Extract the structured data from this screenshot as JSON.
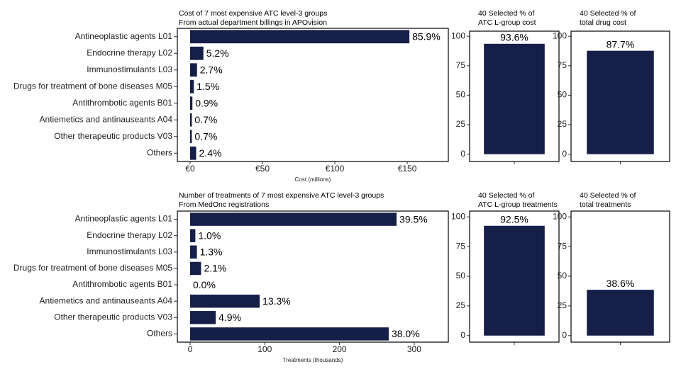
{
  "chart_data": [
    {
      "type": "hbar",
      "title": "Cost of 7 most expensive ATC level-3 groups",
      "subtitle": "From actual department billings in APOvision",
      "x_label": "Cost (millions)",
      "categories": [
        "Antineoplastic agents L01",
        "Endocrine therapy L02",
        "Immunostimulants L03",
        "Drugs for treatment of bone diseases M05",
        "Antithrombotic agents B01",
        "Antiemetics and antinauseants A04",
        "Other therapeutic products V03",
        "Others"
      ],
      "values": [
        151.5,
        9.2,
        4.8,
        2.6,
        1.6,
        1.2,
        1.2,
        4.2
      ],
      "share_labels": [
        "85.9%",
        "5.2%",
        "2.7%",
        "1.5%",
        "0.9%",
        "0.7%",
        "0.7%",
        "2.4%"
      ],
      "color": "#161f48",
      "xlim": [
        -8.8,
        178.4
      ],
      "xticks": [
        {
          "value": 0,
          "label": "€0"
        },
        {
          "value": 50,
          "label": "€50"
        },
        {
          "value": 100,
          "label": "€100"
        },
        {
          "value": 150,
          "label": "€150"
        }
      ]
    },
    {
      "type": "bar",
      "title_lines": [
        "40 Selected % of",
        "ATC L-group cost"
      ],
      "categories": [
        null
      ],
      "values": [
        93.6
      ],
      "value_labels": [
        "93.6%"
      ],
      "color": "#161f48",
      "ylim": [
        -6.2,
        104.3
      ],
      "yticks": [
        0,
        25,
        50,
        75,
        100
      ]
    },
    {
      "type": "bar",
      "title_lines": [
        "40 Selected % of",
        "total drug cost"
      ],
      "categories": [
        null
      ],
      "values": [
        87.7
      ],
      "value_labels": [
        "87.7%"
      ],
      "color": "#161f48",
      "ylim": [
        -6.2,
        104.3
      ],
      "yticks": [
        0,
        25,
        50,
        75,
        100
      ]
    },
    {
      "type": "hbar",
      "title": "Number of treatments of 7 most expensive ATC level-3 groups",
      "subtitle": "From MedOnc registrations",
      "x_label": "Treatments (thousands)",
      "categories": [
        "Antineoplastic agents L01",
        "Endocrine therapy L02",
        "Immunostimulants L03",
        "Drugs for treatment of bone diseases M05",
        "Antithrombotic agents B01",
        "Antiemetics and antinauseants A04",
        "Other therapeutic products V03",
        "Others"
      ],
      "values": [
        276.4,
        7.0,
        9.1,
        14.7,
        0,
        93.1,
        34.3,
        265.9
      ],
      "share_labels": [
        "39.5%",
        "1.0%",
        "1.3%",
        "2.1%",
        "0.0%",
        "13.3%",
        "4.9%",
        "38.0%"
      ],
      "color": "#161f48",
      "xlim": [
        -17.1,
        345.7
      ],
      "xticks": [
        0,
        100,
        200,
        300
      ]
    },
    {
      "type": "bar",
      "title_lines": [
        "40 Selected % of",
        "ATC L-group treatments"
      ],
      "categories": [
        null
      ],
      "values": [
        92.5
      ],
      "value_labels": [
        "92.5%"
      ],
      "color": "#161f48",
      "ylim": [
        -5.5,
        104.9
      ],
      "yticks": [
        0,
        25,
        50,
        75,
        100
      ]
    },
    {
      "type": "bar",
      "title_lines": [
        "40 Selected % of",
        "total treatments"
      ],
      "categories": [
        null
      ],
      "values": [
        38.6
      ],
      "value_labels": [
        "38.6%"
      ],
      "color": "#161f48",
      "ylim": [
        -5.5,
        104.9
      ],
      "yticks": [
        0,
        25,
        50,
        75,
        100
      ]
    }
  ]
}
